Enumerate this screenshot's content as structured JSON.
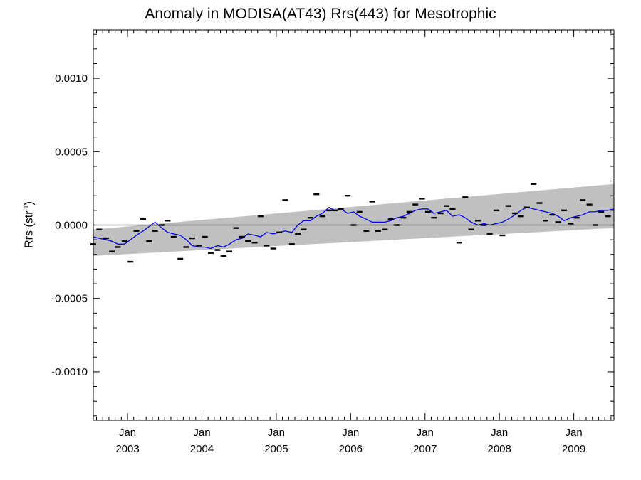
{
  "chart_data": {
    "type": "scatter",
    "title": "Anomaly in MODISA(AT43) Rrs(443) for Mesotrophic",
    "ylabel": {
      "main": "Rrs (str",
      "sup": "-1",
      "close": ")"
    },
    "xlabel": "",
    "xlim": [
      2002.54,
      2009.54
    ],
    "ylim": [
      -0.00133,
      0.00133
    ],
    "yticks": [
      {
        "value": 0.001,
        "label": "0.0010"
      },
      {
        "value": 0.0005,
        "label": "0.0005"
      },
      {
        "value": 0.0,
        "label": "0.0000"
      },
      {
        "value": -0.0005,
        "label": "-0.0005"
      },
      {
        "value": -0.001,
        "label": "-0.0010"
      }
    ],
    "xticks": [
      {
        "value": 2003.0,
        "month": "Jan",
        "year": "2003"
      },
      {
        "value": 2004.0,
        "month": "Jan",
        "year": "2004"
      },
      {
        "value": 2005.0,
        "month": "Jan",
        "year": "2005"
      },
      {
        "value": 2006.0,
        "month": "Jan",
        "year": "2006"
      },
      {
        "value": 2007.0,
        "month": "Jan",
        "year": "2007"
      },
      {
        "value": 2008.0,
        "month": "Jan",
        "year": "2008"
      },
      {
        "value": 2009.0,
        "month": "Jan",
        "year": "2009"
      }
    ],
    "zero_line": 0.0,
    "trend_band": {
      "x": [
        2002.54,
        2009.54
      ],
      "lower": [
        -0.00021,
        -2e-05
      ],
      "upper": [
        -3e-05,
        0.00028
      ]
    },
    "colors": {
      "band": "#c0c0c0",
      "line": "#0000ee",
      "points": "#000000",
      "zero": "#000000"
    },
    "series": [
      {
        "type": "points",
        "x": [
          2002.54,
          2002.62,
          2002.71,
          2002.79,
          2002.87,
          2002.96,
          2003.04,
          2003.12,
          2003.21,
          2003.29,
          2003.37,
          2003.46,
          2003.54,
          2003.62,
          2003.71,
          2003.79,
          2003.87,
          2003.96,
          2004.04,
          2004.12,
          2004.21,
          2004.29,
          2004.37,
          2004.46,
          2004.54,
          2004.62,
          2004.71,
          2004.79,
          2004.87,
          2004.96,
          2005.04,
          2005.12,
          2005.21,
          2005.29,
          2005.37,
          2005.46,
          2005.54,
          2005.62,
          2005.71,
          2005.79,
          2005.87,
          2005.96,
          2006.04,
          2006.12,
          2006.21,
          2006.29,
          2006.37,
          2006.46,
          2006.54,
          2006.62,
          2006.71,
          2006.79,
          2006.87,
          2006.96,
          2007.04,
          2007.12,
          2007.21,
          2007.29,
          2007.37,
          2007.46,
          2007.54,
          2007.62,
          2007.71,
          2007.79,
          2007.87,
          2007.96,
          2008.04,
          2008.12,
          2008.21,
          2008.29,
          2008.37,
          2008.46,
          2008.54,
          2008.62,
          2008.71,
          2008.79,
          2008.87,
          2008.96,
          2009.04,
          2009.12,
          2009.21,
          2009.29,
          2009.37,
          2009.46
        ],
        "y": [
          -0.00013,
          -3e-05,
          -9e-05,
          -0.00018,
          -0.00015,
          -0.00011,
          -0.00025,
          -4e-05,
          4e-05,
          -0.00011,
          -4e-05,
          0.0,
          3e-05,
          -8e-05,
          -0.00023,
          -0.00015,
          -9e-05,
          -0.00014,
          -8e-05,
          -0.00019,
          -0.00017,
          -0.00021,
          -0.00018,
          -2e-05,
          -8e-05,
          -0.00011,
          -0.00012,
          6e-05,
          -0.00014,
          -0.00016,
          -5e-05,
          0.00017,
          -0.00013,
          -6e-05,
          -3e-05,
          5e-05,
          0.00021,
          6e-05,
          0.0001,
          0.0001,
          0.00011,
          0.0002,
          0.0,
          9e-05,
          -4e-05,
          0.00016,
          -4e-05,
          -3e-05,
          4e-05,
          0.0,
          5e-05,
          9e-05,
          0.00014,
          0.00018,
          9e-05,
          5e-05,
          8e-05,
          0.00013,
          0.00011,
          -0.00012,
          0.00019,
          -3e-05,
          3e-05,
          0.0,
          -6e-05,
          0.0001,
          -7e-05,
          0.00013,
          8e-05,
          6e-05,
          0.00012,
          0.00028,
          0.00015,
          3e-05,
          7e-05,
          2e-05,
          0.0001,
          1e-05,
          5e-05,
          0.00017,
          0.00014,
          0.0,
          9e-05,
          6e-05
        ]
      },
      {
        "type": "line",
        "x": [
          2002.54,
          2002.62,
          2002.71,
          2002.79,
          2002.87,
          2002.96,
          2003.04,
          2003.12,
          2003.21,
          2003.29,
          2003.37,
          2003.46,
          2003.54,
          2003.62,
          2003.71,
          2003.79,
          2003.87,
          2003.96,
          2004.04,
          2004.12,
          2004.21,
          2004.29,
          2004.37,
          2004.46,
          2004.54,
          2004.62,
          2004.71,
          2004.79,
          2004.87,
          2004.96,
          2005.04,
          2005.12,
          2005.21,
          2005.29,
          2005.37,
          2005.46,
          2005.54,
          2005.62,
          2005.71,
          2005.79,
          2005.87,
          2005.96,
          2006.04,
          2006.12,
          2006.21,
          2006.29,
          2006.37,
          2006.46,
          2006.54,
          2006.62,
          2006.71,
          2006.79,
          2006.87,
          2006.96,
          2007.04,
          2007.12,
          2007.21,
          2007.29,
          2007.37,
          2007.46,
          2007.54,
          2007.62,
          2007.71,
          2007.79,
          2007.87,
          2007.96,
          2008.04,
          2008.12,
          2008.21,
          2008.29,
          2008.37,
          2008.46,
          2008.54,
          2008.62,
          2008.71,
          2008.79,
          2008.87,
          2008.96,
          2009.04,
          2009.12,
          2009.21,
          2009.29,
          2009.37,
          2009.46,
          2009.54
        ],
        "y": [
          -8e-05,
          -9e-05,
          -0.0001,
          -0.00011,
          -0.00013,
          -0.00013,
          -0.0001,
          -7e-05,
          -4e-05,
          -1e-05,
          2e-05,
          -2e-05,
          -5e-05,
          -6e-05,
          -7e-05,
          -0.0001,
          -0.00014,
          -0.00015,
          -0.00015,
          -0.00016,
          -0.00014,
          -0.00015,
          -0.00013,
          -0.0001,
          -9e-05,
          -6e-05,
          -7e-05,
          -8e-05,
          -5e-05,
          -6e-05,
          -5e-05,
          -4e-05,
          -5e-05,
          0.0,
          3e-05,
          3e-05,
          6e-05,
          8e-05,
          0.00012,
          0.0001,
          0.00011,
          8e-05,
          9e-05,
          6e-05,
          4e-05,
          2e-05,
          2e-05,
          2e-05,
          3e-05,
          5e-05,
          6e-05,
          8e-05,
          0.0001,
          0.00011,
          0.00011,
          8e-05,
          9e-05,
          0.0001,
          6e-05,
          7e-05,
          5e-05,
          2e-05,
          0.0,
          1e-05,
          0.0,
          1e-05,
          2e-05,
          4e-05,
          7e-05,
          0.0001,
          0.00012,
          0.00011,
          0.0001,
          9e-05,
          8e-05,
          6e-05,
          3e-05,
          5e-05,
          6e-05,
          7e-05,
          9e-05,
          9e-05,
          0.0001,
          0.0001,
          0.00011
        ]
      }
    ]
  }
}
